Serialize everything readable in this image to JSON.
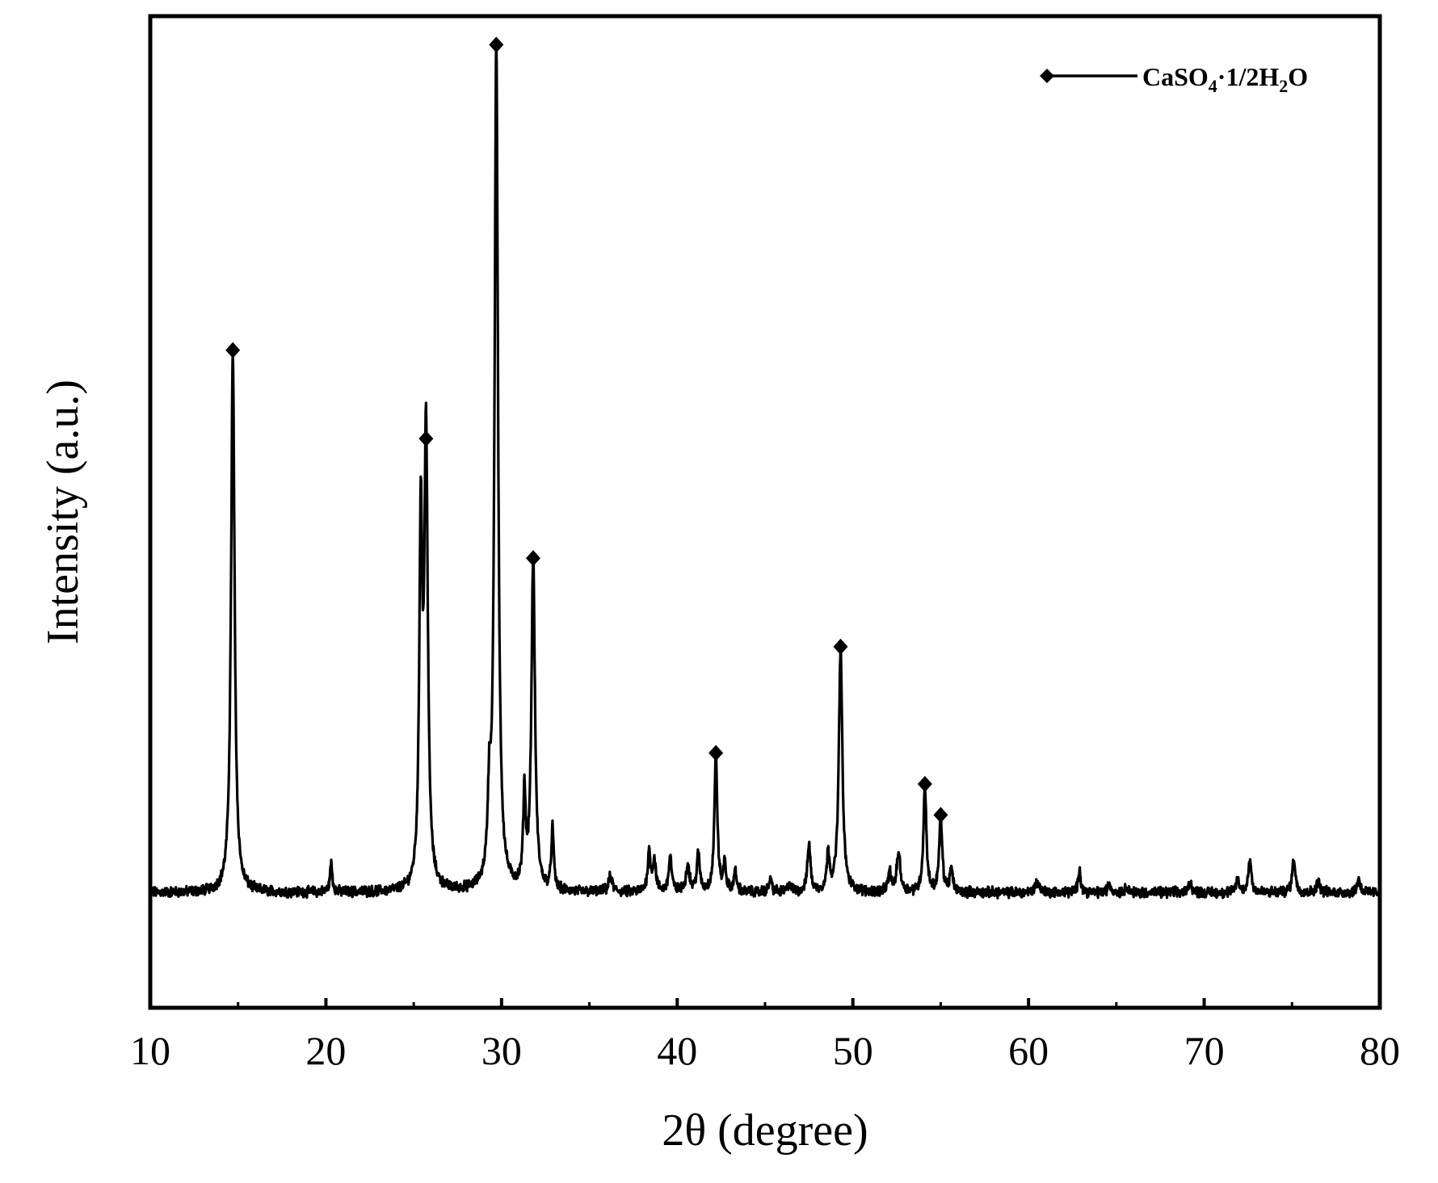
{
  "chart_data": {
    "type": "line",
    "title": "",
    "xlabel": "2θ (degree)",
    "ylabel": "Intensity (a.u.)",
    "xlim": [
      10,
      80
    ],
    "ylim": [
      -12,
      100
    ],
    "x_ticks": [
      10,
      20,
      30,
      40,
      50,
      60,
      70,
      80
    ],
    "x_tick_labels": [
      "10",
      "20",
      "30",
      "40",
      "50",
      "60",
      "70",
      "80"
    ],
    "y_ticks_visible": false,
    "grid": false,
    "legend": {
      "placement": "top-right",
      "marker": "diamond",
      "label_parts": [
        "CaSO",
        "4",
        "·1/2H",
        "2",
        "O"
      ]
    },
    "series": [
      {
        "name": "CaSO4·1/2H2O",
        "color": "#000000",
        "baseline": 1.0,
        "peaks": [
          {
            "x": 14.7,
            "y": 61.0,
            "w": 0.12
          },
          {
            "x": 20.3,
            "y": 3.2,
            "w": 0.08
          },
          {
            "x": 25.4,
            "y": 40.0,
            "w": 0.1
          },
          {
            "x": 25.7,
            "y": 51.0,
            "w": 0.12
          },
          {
            "x": 29.3,
            "y": 8.5,
            "w": 0.1
          },
          {
            "x": 29.7,
            "y": 95.5,
            "w": 0.12
          },
          {
            "x": 31.3,
            "y": 10.5,
            "w": 0.08
          },
          {
            "x": 31.8,
            "y": 37.5,
            "w": 0.12
          },
          {
            "x": 32.9,
            "y": 7.0,
            "w": 0.08
          },
          {
            "x": 36.2,
            "y": 1.8,
            "w": 0.12
          },
          {
            "x": 38.4,
            "y": 4.5,
            "w": 0.1
          },
          {
            "x": 38.7,
            "y": 3.5,
            "w": 0.1
          },
          {
            "x": 39.6,
            "y": 4.0,
            "w": 0.1
          },
          {
            "x": 40.6,
            "y": 3.0,
            "w": 0.12
          },
          {
            "x": 41.2,
            "y": 4.2,
            "w": 0.1
          },
          {
            "x": 42.2,
            "y": 15.5,
            "w": 0.1
          },
          {
            "x": 42.7,
            "y": 3.2,
            "w": 0.08
          },
          {
            "x": 43.3,
            "y": 2.2,
            "w": 0.1
          },
          {
            "x": 45.3,
            "y": 1.5,
            "w": 0.1
          },
          {
            "x": 46.4,
            "y": 1.0,
            "w": 0.1
          },
          {
            "x": 47.5,
            "y": 5.5,
            "w": 0.1
          },
          {
            "x": 48.6,
            "y": 4.2,
            "w": 0.1
          },
          {
            "x": 49.3,
            "y": 27.5,
            "w": 0.12
          },
          {
            "x": 52.1,
            "y": 2.2,
            "w": 0.1
          },
          {
            "x": 52.6,
            "y": 4.5,
            "w": 0.12
          },
          {
            "x": 54.1,
            "y": 12.0,
            "w": 0.1
          },
          {
            "x": 55.0,
            "y": 8.5,
            "w": 0.1
          },
          {
            "x": 55.6,
            "y": 2.5,
            "w": 0.1
          },
          {
            "x": 60.5,
            "y": 1.2,
            "w": 0.15
          },
          {
            "x": 62.9,
            "y": 2.8,
            "w": 0.08
          },
          {
            "x": 64.6,
            "y": 1.0,
            "w": 0.1
          },
          {
            "x": 65.6,
            "y": 0.8,
            "w": 0.1
          },
          {
            "x": 69.2,
            "y": 1.3,
            "w": 0.1
          },
          {
            "x": 71.9,
            "y": 1.5,
            "w": 0.1
          },
          {
            "x": 72.6,
            "y": 3.8,
            "w": 0.1
          },
          {
            "x": 75.1,
            "y": 4.0,
            "w": 0.1
          },
          {
            "x": 76.5,
            "y": 1.2,
            "w": 0.12
          },
          {
            "x": 78.8,
            "y": 1.6,
            "w": 0.1
          }
        ],
        "marked_peaks": [
          {
            "x": 14.7,
            "y": 61.0
          },
          {
            "x": 25.7,
            "y": 51.0
          },
          {
            "x": 29.7,
            "y": 95.5
          },
          {
            "x": 31.8,
            "y": 37.5
          },
          {
            "x": 42.2,
            "y": 15.5
          },
          {
            "x": 49.3,
            "y": 27.5
          },
          {
            "x": 54.1,
            "y": 12.0
          },
          {
            "x": 55.0,
            "y": 8.5
          }
        ]
      }
    ]
  }
}
